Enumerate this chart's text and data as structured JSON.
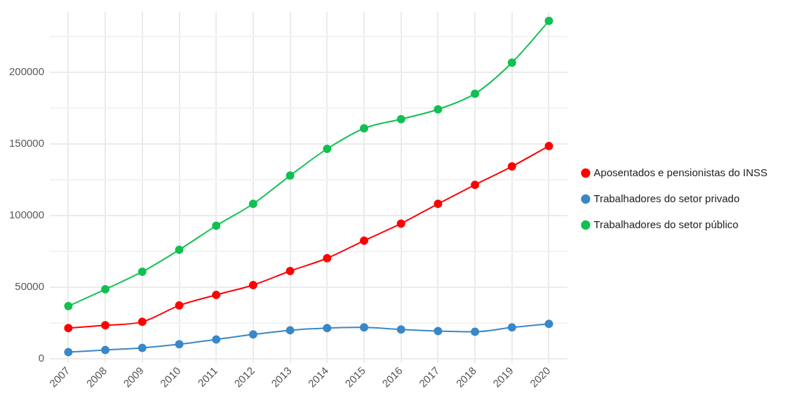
{
  "chart_data": {
    "type": "line",
    "categories": [
      "2007",
      "2008",
      "2009",
      "2010",
      "2011",
      "2012",
      "2013",
      "2014",
      "2015",
      "2016",
      "2017",
      "2018",
      "2019",
      "2020"
    ],
    "series": [
      {
        "name": "Aposentados e pensionistas do INSS",
        "color": "#ff0000",
        "values": [
          21200,
          23200,
          25600,
          37000,
          44400,
          51300,
          61100,
          70000,
          82300,
          94200,
          108000,
          121300,
          134100,
          148400
        ]
      },
      {
        "name": "Trabalhadores do setor privado",
        "color": "#3a87c8",
        "values": [
          4400,
          5900,
          7400,
          9900,
          13300,
          16800,
          19700,
          21200,
          21700,
          20200,
          19200,
          18700,
          21700,
          24200
        ]
      },
      {
        "name": "Trabalhadores do setor público",
        "color": "#10c050",
        "values": [
          36500,
          48300,
          60600,
          75900,
          92700,
          108000,
          127700,
          146400,
          160700,
          167100,
          174000,
          184900,
          206600,
          235700
        ]
      }
    ],
    "ylim": [
      -3000,
      242000
    ],
    "yticks": [
      0,
      {
        "value": 25000,
        "label": null
      },
      50000,
      {
        "value": 75000,
        "label": null
      },
      100000,
      {
        "value": 125000,
        "label": null
      },
      150000,
      {
        "value": 175000,
        "label": null
      },
      200000,
      {
        "value": 225000,
        "label": null
      }
    ],
    "grid": true,
    "legend": "right",
    "marker": "circle",
    "line_style": "solid"
  }
}
